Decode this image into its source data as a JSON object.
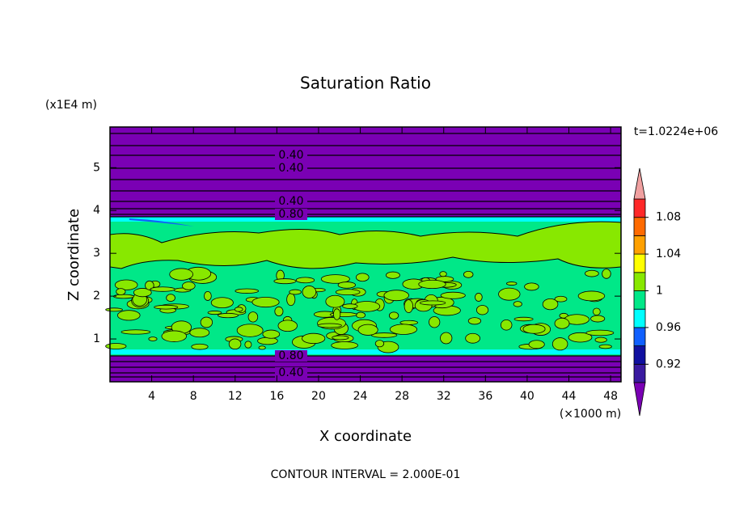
{
  "chart_data": {
    "type": "contour",
    "title": "Saturation Ratio",
    "x_label": "X coordinate",
    "y_label": "Z coordinate",
    "x_unit": "(×1000 m)",
    "y_unit": "(x1E4 m)",
    "time_label": "t=1.0224e+06",
    "footer": "CONTOUR INTERVAL = 2.000E-01",
    "xlim": [
      0,
      49
    ],
    "ylim": [
      0,
      5.95
    ],
    "xticks": [
      4,
      8,
      12,
      16,
      20,
      24,
      28,
      32,
      36,
      40,
      44,
      48
    ],
    "yticks": [
      1,
      2,
      3,
      4,
      5
    ],
    "contour_labels": [
      "0.40",
      "0.40",
      "0.40",
      "0.80",
      "0.80",
      "0.40"
    ],
    "colorbar": {
      "levels": [
        0.9,
        0.92,
        0.94,
        0.96,
        0.98,
        1,
        1.02,
        1.04,
        1.06,
        1.08,
        1.1
      ],
      "colors": [
        "#3a1aa0",
        "#1010a0",
        "#1060ff",
        "#00ffff",
        "#00e888",
        "#88e800",
        "#ffff00",
        "#ffa000",
        "#ff6a00",
        "#ff2828"
      ],
      "under_color": "#7a00b4",
      "over_color": "#f0a0a0",
      "ticks": [
        0.92,
        0.96,
        1,
        1.04,
        1.08
      ]
    }
  }
}
